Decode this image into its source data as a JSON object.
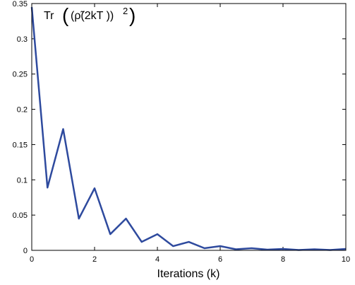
{
  "chart_data": {
    "type": "line",
    "title": "Tr ((ρ̃(2kT ))²)",
    "title_parts": {
      "prefix": "Tr",
      "open_paren": "(",
      "body": "(ρ̃(2kT ))",
      "exponent": "2",
      "close_paren": ")"
    },
    "xlabel": "Iterations (k)",
    "ylabel": "",
    "xlim": [
      0,
      10
    ],
    "ylim": [
      0,
      0.35
    ],
    "xticks": [
      0,
      2,
      4,
      6,
      8,
      10
    ],
    "yticks": [
      0,
      0.05,
      0.1,
      0.15,
      0.2,
      0.25,
      0.3,
      0.35
    ],
    "xtick_labels": [
      "0",
      "2",
      "4",
      "6",
      "8",
      "10"
    ],
    "ytick_labels": [
      "0",
      "0.05",
      "0.1",
      "0.15",
      "0.2",
      "0.25",
      "0.3",
      "0.35"
    ],
    "grid": false,
    "series": [
      {
        "color": "#2e4a9e",
        "x": [
          0,
          0.5,
          1,
          1.5,
          2,
          2.5,
          3,
          3.5,
          4,
          4.5,
          5,
          5.5,
          6,
          6.5,
          7,
          7.5,
          8,
          8.5,
          9,
          9.5,
          10
        ],
        "y": [
          0.345,
          0.089,
          0.172,
          0.045,
          0.088,
          0.023,
          0.045,
          0.012,
          0.023,
          0.006,
          0.012,
          0.003,
          0.006,
          0.0015,
          0.003,
          0.001,
          0.002,
          0.0005,
          0.0015,
          0.0005,
          0.002
        ]
      }
    ]
  }
}
